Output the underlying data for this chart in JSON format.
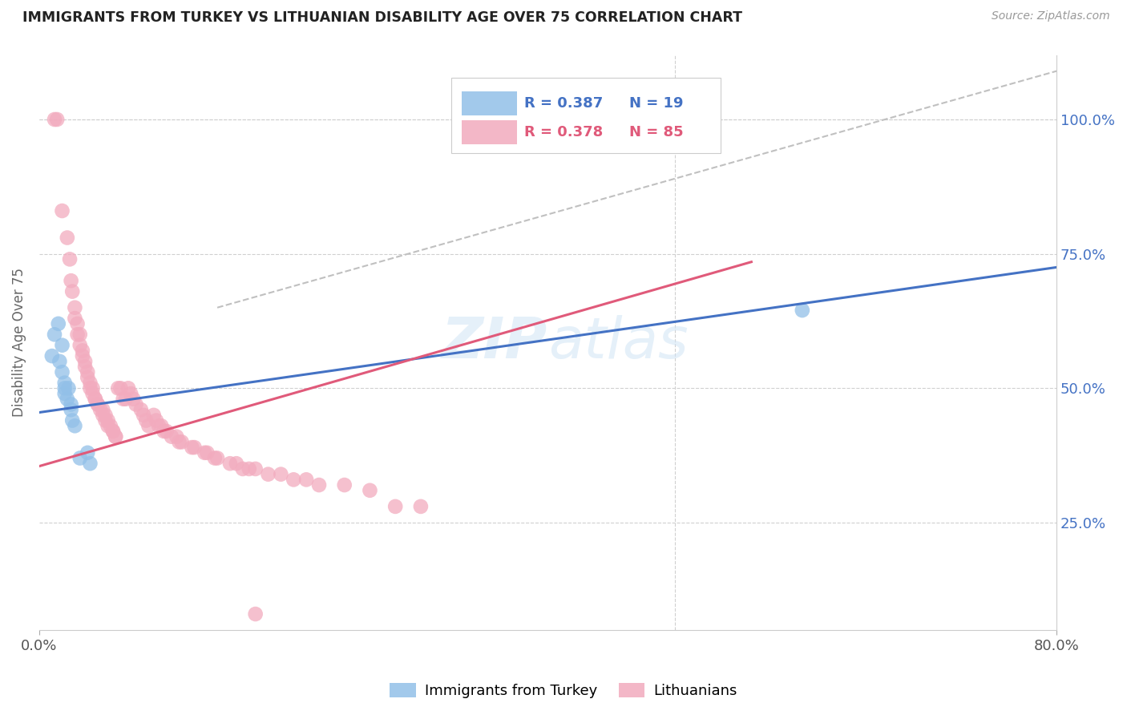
{
  "title": "IMMIGRANTS FROM TURKEY VS LITHUANIAN DISABILITY AGE OVER 75 CORRELATION CHART",
  "source": "Source: ZipAtlas.com",
  "ylabel": "Disability Age Over 75",
  "ytick_labels": [
    "100.0%",
    "75.0%",
    "50.0%",
    "25.0%"
  ],
  "ytick_values": [
    1.0,
    0.75,
    0.5,
    0.25
  ],
  "xlim": [
    0.0,
    0.8
  ],
  "ylim": [
    0.05,
    1.12
  ],
  "legend_label_blue": "Immigrants from Turkey",
  "legend_label_pink": "Lithuanians",
  "blue_color": "#92c0e8",
  "pink_color": "#f2abbe",
  "blue_line_color": "#4472c4",
  "pink_line_color": "#e05a7a",
  "dashed_line_color": "#c0c0c0",
  "blue_dots": [
    [
      0.01,
      0.56
    ],
    [
      0.012,
      0.6
    ],
    [
      0.015,
      0.62
    ],
    [
      0.016,
      0.55
    ],
    [
      0.018,
      0.58
    ],
    [
      0.018,
      0.53
    ],
    [
      0.02,
      0.51
    ],
    [
      0.02,
      0.5
    ],
    [
      0.02,
      0.49
    ],
    [
      0.022,
      0.48
    ],
    [
      0.023,
      0.5
    ],
    [
      0.025,
      0.47
    ],
    [
      0.025,
      0.46
    ],
    [
      0.026,
      0.44
    ],
    [
      0.028,
      0.43
    ],
    [
      0.032,
      0.37
    ],
    [
      0.038,
      0.38
    ],
    [
      0.04,
      0.36
    ],
    [
      0.6,
      0.645
    ]
  ],
  "pink_dots": [
    [
      0.012,
      1.0
    ],
    [
      0.014,
      1.0
    ],
    [
      0.018,
      0.83
    ],
    [
      0.022,
      0.78
    ],
    [
      0.024,
      0.74
    ],
    [
      0.025,
      0.7
    ],
    [
      0.026,
      0.68
    ],
    [
      0.028,
      0.65
    ],
    [
      0.028,
      0.63
    ],
    [
      0.03,
      0.62
    ],
    [
      0.03,
      0.6
    ],
    [
      0.032,
      0.6
    ],
    [
      0.032,
      0.58
    ],
    [
      0.034,
      0.57
    ],
    [
      0.034,
      0.56
    ],
    [
      0.036,
      0.55
    ],
    [
      0.036,
      0.54
    ],
    [
      0.038,
      0.53
    ],
    [
      0.038,
      0.52
    ],
    [
      0.04,
      0.51
    ],
    [
      0.04,
      0.5
    ],
    [
      0.042,
      0.5
    ],
    [
      0.042,
      0.49
    ],
    [
      0.044,
      0.48
    ],
    [
      0.044,
      0.48
    ],
    [
      0.046,
      0.47
    ],
    [
      0.046,
      0.47
    ],
    [
      0.048,
      0.46
    ],
    [
      0.05,
      0.46
    ],
    [
      0.05,
      0.45
    ],
    [
      0.052,
      0.45
    ],
    [
      0.052,
      0.44
    ],
    [
      0.054,
      0.44
    ],
    [
      0.054,
      0.43
    ],
    [
      0.056,
      0.43
    ],
    [
      0.058,
      0.42
    ],
    [
      0.058,
      0.42
    ],
    [
      0.06,
      0.41
    ],
    [
      0.06,
      0.41
    ],
    [
      0.062,
      0.5
    ],
    [
      0.064,
      0.5
    ],
    [
      0.066,
      0.48
    ],
    [
      0.068,
      0.48
    ],
    [
      0.07,
      0.5
    ],
    [
      0.072,
      0.49
    ],
    [
      0.074,
      0.48
    ],
    [
      0.076,
      0.47
    ],
    [
      0.08,
      0.46
    ],
    [
      0.082,
      0.45
    ],
    [
      0.084,
      0.44
    ],
    [
      0.086,
      0.43
    ],
    [
      0.09,
      0.45
    ],
    [
      0.092,
      0.44
    ],
    [
      0.094,
      0.43
    ],
    [
      0.096,
      0.43
    ],
    [
      0.098,
      0.42
    ],
    [
      0.1,
      0.42
    ],
    [
      0.104,
      0.41
    ],
    [
      0.108,
      0.41
    ],
    [
      0.11,
      0.4
    ],
    [
      0.112,
      0.4
    ],
    [
      0.12,
      0.39
    ],
    [
      0.122,
      0.39
    ],
    [
      0.13,
      0.38
    ],
    [
      0.132,
      0.38
    ],
    [
      0.138,
      0.37
    ],
    [
      0.14,
      0.37
    ],
    [
      0.15,
      0.36
    ],
    [
      0.155,
      0.36
    ],
    [
      0.16,
      0.35
    ],
    [
      0.165,
      0.35
    ],
    [
      0.17,
      0.35
    ],
    [
      0.18,
      0.34
    ],
    [
      0.19,
      0.34
    ],
    [
      0.2,
      0.33
    ],
    [
      0.21,
      0.33
    ],
    [
      0.22,
      0.32
    ],
    [
      0.24,
      0.32
    ],
    [
      0.26,
      0.31
    ],
    [
      0.28,
      0.28
    ],
    [
      0.3,
      0.28
    ],
    [
      0.17,
      0.08
    ]
  ],
  "blue_line": {
    "x0": 0.0,
    "y0": 0.455,
    "x1": 0.8,
    "y1": 0.725
  },
  "pink_line": {
    "x0": 0.0,
    "y0": 0.355,
    "x1": 0.56,
    "y1": 0.735
  },
  "dash_line": {
    "x0": 0.14,
    "y0": 0.65,
    "x1": 0.8,
    "y1": 1.09
  }
}
